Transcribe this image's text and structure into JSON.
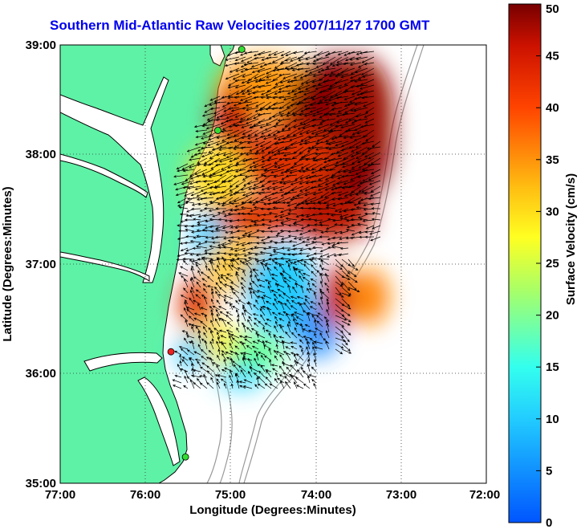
{
  "title": "Southern Mid-Atlantic Raw Velocities 2007/11/27 1700 GMT",
  "map": {
    "xlabel": "Longitude (Degrees:Minutes)",
    "ylabel": "Latitude (Degrees:Minutes)",
    "lon_ticks": [
      "77:00",
      "76:00",
      "75:00",
      "74:00",
      "73:00",
      "72:00"
    ],
    "lat_ticks": [
      "39:00",
      "38:00",
      "37:00",
      "36:00",
      "35:00"
    ],
    "lon_range": [
      -77,
      -72
    ],
    "lat_range": [
      35,
      39
    ],
    "grid": "dotted",
    "land_color": "#5ef2a6",
    "stations": [
      {
        "lon": -74.87,
        "lat": 38.96,
        "color": "#33dd33"
      },
      {
        "lon": -75.15,
        "lat": 38.22,
        "color": "#33dd33"
      },
      {
        "lon": -75.7,
        "lat": 36.2,
        "color": "#ee2222"
      },
      {
        "lon": -75.53,
        "lat": 35.24,
        "color": "#33dd33"
      }
    ]
  },
  "colorbar": {
    "label": "Surface Velocity (cm/s)",
    "range": [
      0,
      50
    ],
    "ticks": [
      "0",
      "5",
      "10",
      "15",
      "20",
      "25",
      "30",
      "35",
      "40",
      "45",
      "50"
    ]
  }
}
